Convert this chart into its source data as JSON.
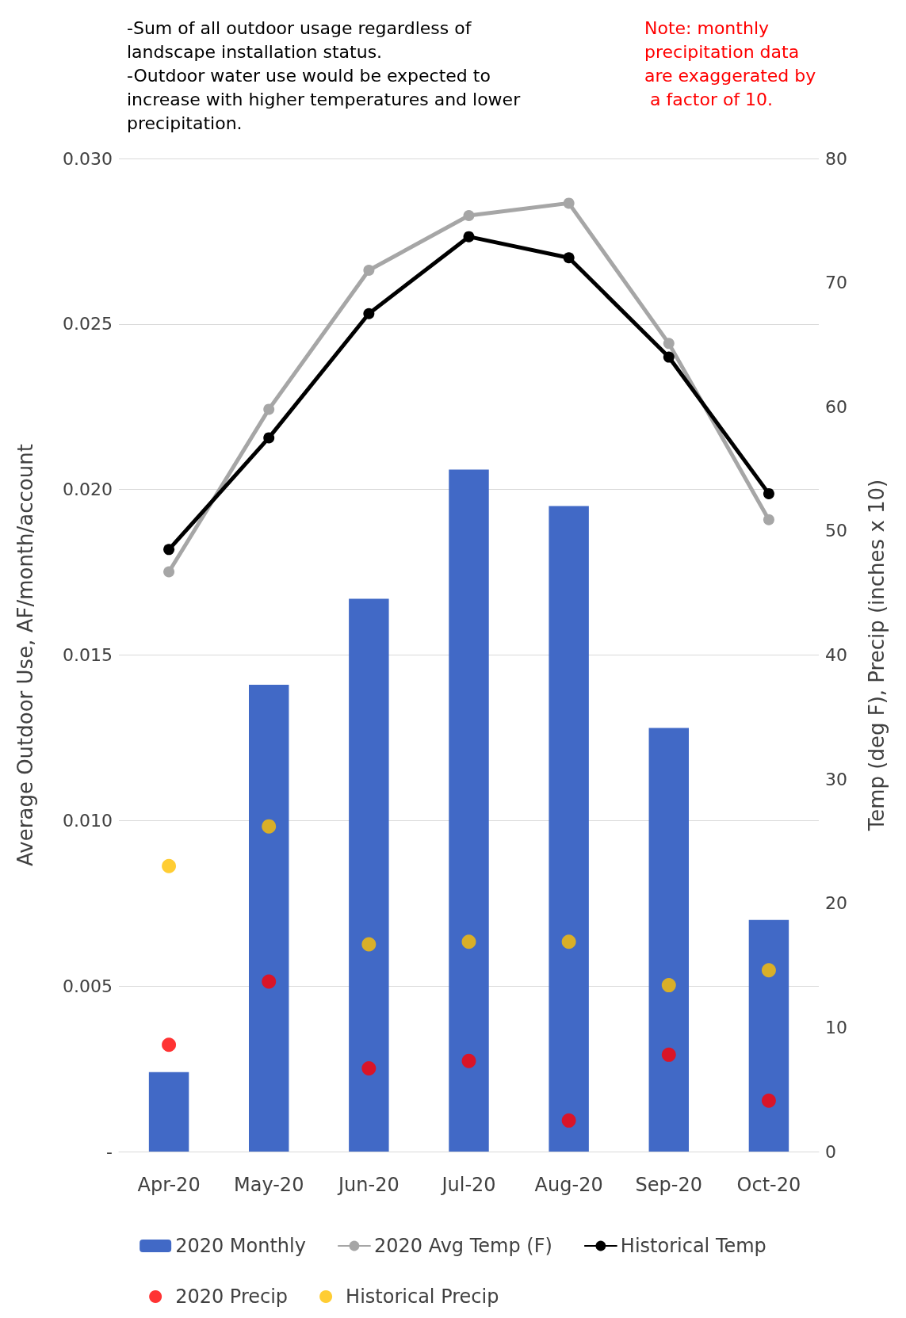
{
  "chart_data": {
    "type": "bar",
    "categories": [
      "Apr-20",
      "May-20",
      "Jun-20",
      "Jul-20",
      "Aug-20",
      "Sep-20",
      "Oct-20"
    ],
    "ylabel": "Average Outdoor Use, AF/month/account",
    "y2label": "Temp (deg F), Precip (inches x 10)",
    "ylim": [
      0,
      0.03
    ],
    "yticks": [
      {
        "value": 0,
        "label": "-"
      },
      {
        "value": 0.005,
        "label": "0.005"
      },
      {
        "value": 0.01,
        "label": "0.010"
      },
      {
        "value": 0.015,
        "label": "0.015"
      },
      {
        "value": 0.02,
        "label": "0.020"
      },
      {
        "value": 0.025,
        "label": "0.025"
      },
      {
        "value": 0.03,
        "label": "0.030"
      }
    ],
    "y2lim": [
      0,
      80
    ],
    "y2ticks": [
      0,
      10,
      20,
      30,
      40,
      50,
      60,
      70,
      80
    ],
    "grid": "y",
    "legend": "bottom",
    "marker": "circle",
    "series": [
      {
        "name": "2020 Monthly",
        "color": "#4169c6",
        "values": [
          0.0024,
          0.0141,
          0.0167,
          0.0206,
          0.0195,
          0.0128,
          0.007
        ]
      },
      {
        "name": "2020 Avg Temp (F)",
        "type": "line",
        "axis": "y2",
        "color": "#a6a6a6",
        "values": [
          46.7,
          59.8,
          71.0,
          75.4,
          76.4,
          65.1,
          50.9
        ]
      },
      {
        "name": "Historical Temp",
        "type": "line",
        "axis": "y2",
        "color": "#000000",
        "values": [
          48.5,
          57.5,
          67.5,
          73.7,
          72.0,
          64.0,
          53.0
        ]
      },
      {
        "name": "2020 Precip",
        "type": "scatter",
        "axis": "y2",
        "color": "#ff0000",
        "x": [
          "Apr-20",
          "May-20",
          "Jun-20",
          "Jul-20",
          "Aug-20",
          "Sep-20",
          "Oct-20"
        ],
        "values": [
          8.6,
          13.7,
          6.7,
          7.3,
          2.5,
          7.8,
          4.1
        ]
      },
      {
        "name": "Historical Precip",
        "type": "scatter",
        "axis": "y2",
        "color": "#ffc000",
        "x": [
          "Apr-20",
          "May-20",
          "Jun-20",
          "Jul-20",
          "Aug-20",
          "Sep-20",
          "Oct-20"
        ],
        "values": [
          23.0,
          26.2,
          16.7,
          16.9,
          16.9,
          13.4,
          14.6
        ]
      }
    ],
    "annotations": [
      "-Sum of all outdoor usage regardless of landscape installation status.\n-Outdoor water use would be expected to increase with higher temperatures and lower precipitation.",
      "Note: monthly precipitation data are exaggerated by a factor of 10."
    ]
  }
}
